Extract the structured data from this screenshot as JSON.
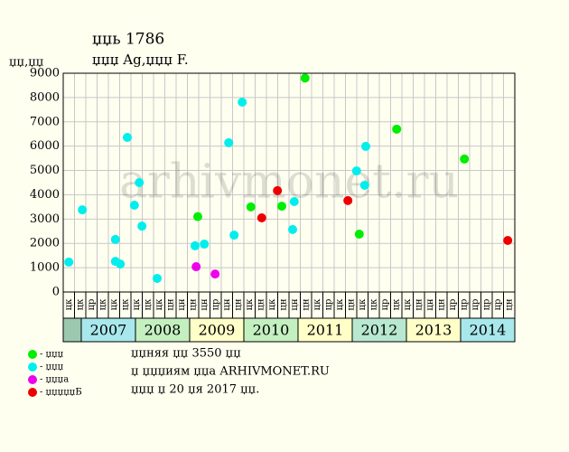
{
  "chart_data": {
    "type": "scatter",
    "title": "џџь 1786",
    "subtitle": "џџџ Ag,џџџ F.",
    "y_label": "џџ,џџ",
    "watermark": "arhivmonet.ru",
    "periods": [
      "цк",
      "цк",
      "цр",
      "цк",
      "цк",
      "цк",
      "цк",
      "цк",
      "цк",
      "цн",
      "цн",
      "цн",
      "цн",
      "цр",
      "цн",
      "цн",
      "цк",
      "цн",
      "цк",
      "цн",
      "цн",
      "цн",
      "цк",
      "цр",
      "цк",
      "цн",
      "цк",
      "цк",
      "цр",
      "цк",
      "цк",
      "цн",
      "цн",
      "цн",
      "цр",
      "цр",
      "цр",
      "цр",
      "цр",
      "цн"
    ],
    "years": [
      "2007",
      "2008",
      "2009",
      "2010",
      "2011",
      "2012",
      "2013",
      "2014"
    ],
    "xlim": [
      2006.667,
      2015
    ],
    "ylim": [
      0,
      9000
    ],
    "yticks": [
      0,
      1000,
      2000,
      3000,
      4000,
      5000,
      6000,
      7000,
      8000,
      9000
    ],
    "series": [
      {
        "name": "- џџџ",
        "color": "#00ee00",
        "x": [
          2011.13,
          2009.15,
          2010.13,
          2010.7,
          2012.13,
          2012.82,
          2014.07
        ],
        "values": [
          8800,
          3100,
          3500,
          3530,
          2380,
          6700,
          5470
        ]
      },
      {
        "name": "- џџџ",
        "color": "#00eeee",
        "x": [
          2006.77,
          2007.02,
          2007.85,
          2007.63,
          2007.63,
          2007.72,
          2007.98,
          2008.07,
          2008.12,
          2008.4,
          2009.1,
          2009.27,
          2009.72,
          2009.82,
          2009.97,
          2010.9,
          2010.93,
          2012.08,
          2012.25,
          2012.23
        ],
        "values": [
          1230,
          3380,
          6360,
          2160,
          1260,
          1150,
          3570,
          4500,
          2710,
          560,
          1900,
          1970,
          6140,
          2340,
          7810,
          2570,
          3720,
          4980,
          5990,
          4390
        ]
      },
      {
        "name": "- џџџа",
        "color": "#ee00ee",
        "x": [
          2009.12,
          2009.47
        ],
        "values": [
          1040,
          740
        ]
      },
      {
        "name": "- џџџџџБ",
        "color": "#ee0000",
        "x": [
          2010.33,
          2010.62,
          2011.92,
          2014.87
        ],
        "values": [
          3050,
          4170,
          3760,
          2120
        ]
      }
    ],
    "notes": [
      "џџняя џџ 3550 џџ",
      "џ џџџиям џџа ARHIVMONET.RU",
      "џџџ џ 20 џя 2017 џџ."
    ]
  }
}
